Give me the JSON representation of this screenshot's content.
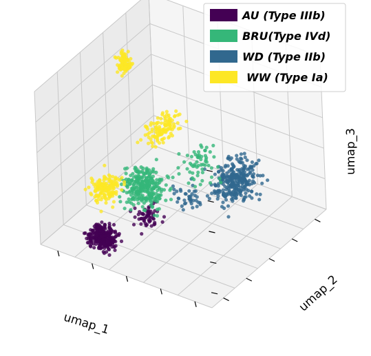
{
  "chart_data": {
    "type": "scatter",
    "projection": "3d",
    "xlabel": "umap_1",
    "ylabel": "umap_2",
    "zlabel": "umap_3",
    "grid": true,
    "legend_position": "top-right",
    "series": [
      {
        "name": "AU (Type IIIb)",
        "color": "#440154",
        "clusters": [
          {
            "x": [
              2,
              4
            ],
            "y": [
              0,
              2
            ],
            "z": [
              0.2,
              2.0
            ],
            "n": 300
          },
          {
            "x": [
              4,
              6
            ],
            "y": [
              1,
              3
            ],
            "z": [
              1.8,
              3.5
            ],
            "n": 60
          }
        ]
      },
      {
        "name": "BRU(Type IVd)",
        "color": "#35b779",
        "clusters": [
          {
            "x": [
              3,
              6
            ],
            "y": [
              1,
              4
            ],
            "z": [
              2.5,
              5.5
            ],
            "n": 300
          },
          {
            "x": [
              5,
              8
            ],
            "y": [
              3,
              6
            ],
            "z": [
              3.5,
              6.5
            ],
            "n": 60
          }
        ]
      },
      {
        "name": "WD (Type IIb)",
        "color": "#31688e",
        "clusters": [
          {
            "x": [
              6,
              9
            ],
            "y": [
              4,
              8
            ],
            "z": [
              1.5,
              5.0
            ],
            "n": 300
          },
          {
            "x": [
              5,
              7
            ],
            "y": [
              3,
              5
            ],
            "z": [
              2.0,
              4.0
            ],
            "n": 40
          }
        ]
      },
      {
        "name": "WW (Type Ia)",
        "color": "#fde725",
        "clusters": [
          {
            "x": [
              3,
              5
            ],
            "y": [
              3,
              7
            ],
            "z": [
              5.0,
              7.0
            ],
            "n": 120
          },
          {
            "x": [
              2,
              4
            ],
            "y": [
              0,
              3
            ],
            "z": [
              3.0,
              5.0
            ],
            "n": 150
          },
          {
            "x": [
              1,
              2
            ],
            "y": [
              5,
              6
            ],
            "z": [
              8.0,
              10.0
            ],
            "n": 90
          }
        ]
      }
    ]
  }
}
